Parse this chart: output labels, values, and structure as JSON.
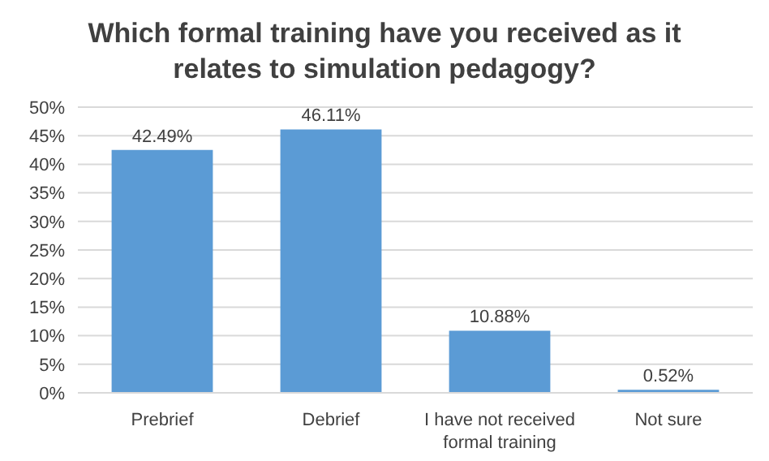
{
  "chart_data": {
    "type": "bar",
    "title": "Which formal training have you received as it relates to simulation pedagogy?",
    "categories": [
      "Prebrief",
      "Debrief",
      "I have not received formal training",
      "Not sure"
    ],
    "values": [
      42.49,
      46.11,
      10.88,
      0.52
    ],
    "value_labels": [
      "42.49%",
      "46.11%",
      "10.88%",
      "0.52%"
    ],
    "color": "#5b9bd5",
    "ylim": [
      0,
      50
    ],
    "yticks": [
      {
        "value": 0,
        "label": "0%"
      },
      {
        "value": 5,
        "label": "5%"
      },
      {
        "value": 10,
        "label": "10%"
      },
      {
        "value": 15,
        "label": "15%"
      },
      {
        "value": 20,
        "label": "20%"
      },
      {
        "value": 25,
        "label": "25%"
      },
      {
        "value": 30,
        "label": "30%"
      },
      {
        "value": 35,
        "label": "35%"
      },
      {
        "value": 40,
        "label": "40%"
      },
      {
        "value": 45,
        "label": "45%"
      },
      {
        "value": 50,
        "label": "50%"
      }
    ],
    "grid": "y"
  }
}
